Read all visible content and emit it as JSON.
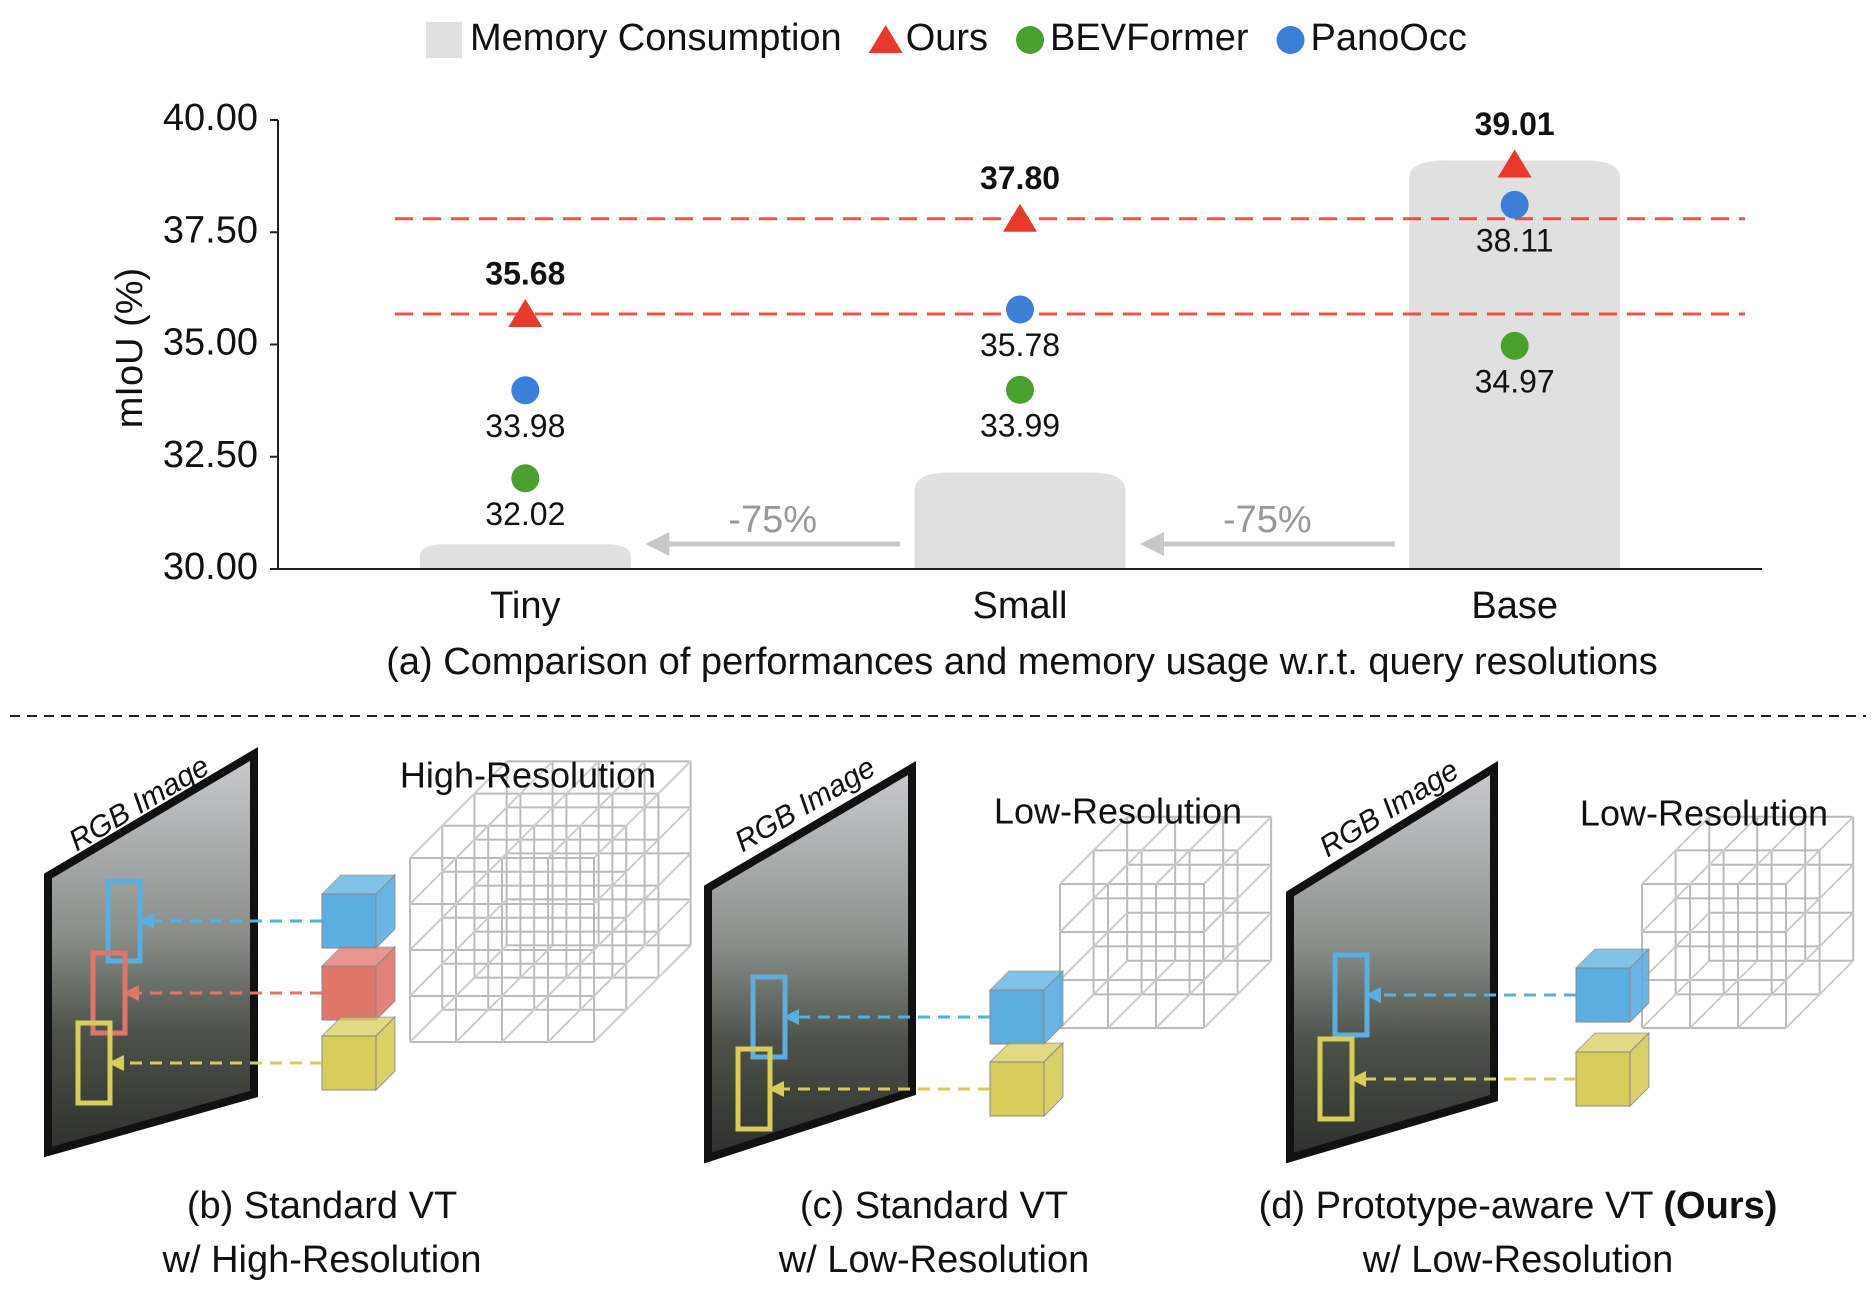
{
  "chart_data": {
    "type": "dot",
    "categories": [
      "Tiny",
      "Small",
      "Base"
    ],
    "ylabel": "mIoU (%)",
    "ylim": [
      30,
      40
    ],
    "yticks": [
      {
        "value": 30,
        "label": "30.00"
      },
      {
        "value": 32.5,
        "label": "32.50"
      },
      {
        "value": 35,
        "label": "35.00"
      },
      {
        "value": 37.5,
        "label": "37.50"
      },
      {
        "value": 40,
        "label": "40.00"
      }
    ],
    "bars": {
      "name": "Memory Consumption",
      "color": "#e0e0e0",
      "values": [
        30.55,
        32.15,
        39.1
      ]
    },
    "series": [
      {
        "name": "Ours",
        "color": "#e8392a",
        "marker": "triangle",
        "values": [
          35.68,
          37.8,
          39.01
        ],
        "value_labels": [
          "35.68",
          "37.80",
          "39.01"
        ]
      },
      {
        "name": "BEVFormer",
        "color": "#4aa02c",
        "marker": "circle",
        "values": [
          32.02,
          33.99,
          34.97
        ],
        "value_labels": [
          "32.02",
          "33.99",
          "34.97"
        ]
      },
      {
        "name": "PanoOcc",
        "color": "#3b7fd8",
        "marker": "circle",
        "values": [
          33.98,
          35.78,
          38.11
        ],
        "value_labels": [
          "33.98",
          "35.78",
          "38.11"
        ]
      }
    ],
    "annotations": [
      "-75%",
      "-75%"
    ],
    "caption": "(a) Comparison of performances and memory usage w.r.t. query resolutions"
  },
  "diagrams": {
    "panels": [
      {
        "image_label": "RGB Image",
        "grid_label": "High-Resolution",
        "caption": [
          [
            "(b) Standard VT"
          ],
          [
            "w/ High-Resolution"
          ]
        ]
      },
      {
        "image_label": "RGB Image",
        "grid_label": "Low-Resolution",
        "caption": [
          [
            "(c) Standard VT"
          ],
          [
            "w/ Low-Resolution"
          ]
        ]
      },
      {
        "image_label": "RGB Image",
        "grid_label": "Low-Resolution",
        "caption": [
          [
            "(d) Prototype-aware VT ",
            "(Ours)"
          ],
          [
            "w/ Low-Resolution"
          ]
        ]
      }
    ]
  }
}
